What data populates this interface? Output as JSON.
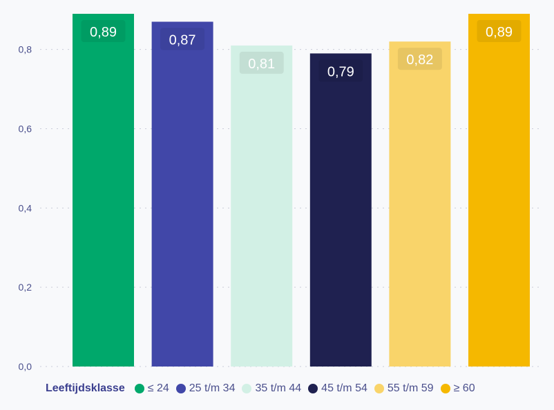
{
  "chart_data": {
    "type": "bar",
    "categories": [
      "≤ 24",
      "25 t/m 34",
      "35 t/m 44",
      "45 t/m 54",
      "55 t/m 59",
      "≥ 60"
    ],
    "values": [
      0.89,
      0.87,
      0.81,
      0.79,
      0.82,
      0.89
    ],
    "value_labels": [
      "0,89",
      "0,87",
      "0,81",
      "0,79",
      "0,82",
      "0,89"
    ],
    "colors": [
      "#00a86b",
      "#4147a8",
      "#d2f0e5",
      "#1f2150",
      "#f9d46a",
      "#f5b800"
    ],
    "label_colors": [
      "#ffffff",
      "#ffffff",
      "#ffffff",
      "#ffffff",
      "#ffffff",
      "#ffffff"
    ],
    "ylim": [
      0,
      0.89
    ],
    "yticks": [
      0.0,
      0.2,
      0.4,
      0.6,
      0.8
    ],
    "ytick_labels": [
      "0,0",
      "0,2",
      "0,4",
      "0,6",
      "0,8"
    ],
    "grid": true,
    "legend_title": "Leeftijdsklasse",
    "legend_position": "bottom"
  }
}
